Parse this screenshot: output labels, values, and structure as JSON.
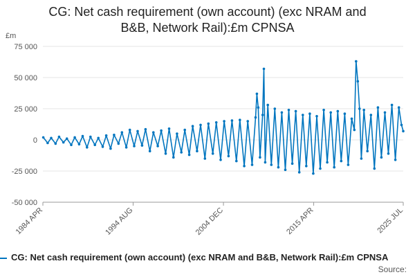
{
  "colors": {
    "series": "#0075bf",
    "grid": "#e6e6e6",
    "axis": "#999999",
    "text": "#555555"
  },
  "chart_data": {
    "type": "line",
    "title": "CG: Net cash requirement (own account) (exc NRAM and B&B, Network Rail):£m CPNSA",
    "title_lines": [
      "CG: Net cash requirement (own account) (exc NRAM and",
      "B&B, Network Rail):£m CPNSA"
    ],
    "ylabel": "£m",
    "ylim": [
      -50000,
      75000
    ],
    "yticks": [
      75000,
      50000,
      25000,
      0,
      -25000,
      -50000
    ],
    "ytick_labels": [
      "75 000",
      "50 000",
      "25 000",
      "0",
      "-25 000",
      "-50 000"
    ],
    "xlim": [
      1984.25,
      2025.5
    ],
    "xticks": [
      1984.25,
      1994.58,
      2004.92,
      2015.25,
      2025.5
    ],
    "xtick_labels": [
      "1984 APR",
      "1994 AUG",
      "2004 DEC",
      "2015 APR",
      "2025 JUL"
    ],
    "legend": "CG: Net cash requirement (own account) (exc NRAM and B&B, Network Rail):£m CPNSA",
    "legend_position": "bottom",
    "source_label": "Source:",
    "series": [
      {
        "name": "CG: Net cash requirement (own account) (exc NRAM and B&B, Network Rail):£m CPNSA",
        "x": [
          1984.3,
          1984.8,
          1985.2,
          1985.7,
          1986.1,
          1986.6,
          1987.0,
          1987.5,
          1987.9,
          1988.4,
          1988.8,
          1989.3,
          1989.7,
          1990.2,
          1990.6,
          1991.1,
          1991.5,
          1992.0,
          1992.4,
          1992.9,
          1993.3,
          1993.8,
          1994.2,
          1994.7,
          1995.1,
          1995.6,
          1996.0,
          1996.5,
          1996.9,
          1997.4,
          1997.8,
          1998.3,
          1998.7,
          1999.2,
          1999.6,
          2000.1,
          2000.5,
          2001.0,
          2001.4,
          2001.9,
          2002.3,
          2002.8,
          2003.2,
          2003.7,
          2004.1,
          2004.6,
          2005.0,
          2005.5,
          2005.9,
          2006.4,
          2006.8,
          2007.3,
          2007.7,
          2008.2,
          2008.6,
          2008.75,
          2008.9,
          2009.1,
          2009.4,
          2009.55,
          2009.7,
          2010.0,
          2010.4,
          2010.8,
          2011.2,
          2011.6,
          2012.0,
          2012.4,
          2012.8,
          2013.2,
          2013.6,
          2014.0,
          2014.4,
          2014.8,
          2015.2,
          2015.6,
          2016.0,
          2016.4,
          2016.8,
          2017.2,
          2017.6,
          2018.0,
          2018.4,
          2018.8,
          2019.2,
          2019.6,
          2019.9,
          2020.1,
          2020.3,
          2020.5,
          2020.7,
          2021.0,
          2021.4,
          2021.8,
          2022.2,
          2022.6,
          2023.0,
          2023.4,
          2023.8,
          2024.2,
          2024.6,
          2025.0,
          2025.3,
          2025.5
        ],
        "values": [
          2000,
          -2500,
          1500,
          -3000,
          2500,
          -2000,
          1000,
          -4000,
          2000,
          -3500,
          3000,
          -6000,
          2500,
          -4000,
          1500,
          -5500,
          3500,
          -7000,
          4000,
          -3000,
          6000,
          -6000,
          8000,
          -5000,
          7000,
          -4500,
          8500,
          -9000,
          6000,
          -5000,
          7500,
          -11000,
          9000,
          -14000,
          5000,
          -10000,
          8000,
          -12000,
          11000,
          -9000,
          12000,
          -15000,
          13000,
          -11000,
          14000,
          -16000,
          15000,
          -13000,
          15500,
          -17000,
          16000,
          -21000,
          15000,
          -20000,
          18000,
          37000,
          26000,
          -14000,
          20000,
          57000,
          -18000,
          28000,
          -20000,
          25000,
          -22000,
          22000,
          -24000,
          24000,
          -19000,
          23000,
          -26000,
          20000,
          -21000,
          21000,
          -27000,
          19000,
          -23000,
          24000,
          -18000,
          22000,
          -22000,
          23000,
          -17000,
          21000,
          -20000,
          17000,
          8000,
          63000,
          47000,
          25000,
          -15000,
          24000,
          -9000,
          20000,
          -23000,
          26000,
          -14000,
          22000,
          -11000,
          28000,
          -16000,
          26000,
          12000,
          7000
        ]
      }
    ]
  }
}
